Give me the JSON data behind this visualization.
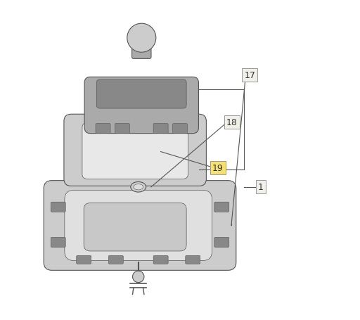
{
  "bg_color": "#ffffff",
  "line_color": "#555555",
  "fill_gray": "#aaaaaa",
  "fill_light_gray": "#cccccc",
  "fill_dark_gray": "#888888",
  "label_box_color_19": "#f5e070",
  "label_box_color_others": "#f0f0e8",
  "label_color": "#333333",
  "figsize": [
    5.12,
    4.56
  ],
  "dpi": 100
}
